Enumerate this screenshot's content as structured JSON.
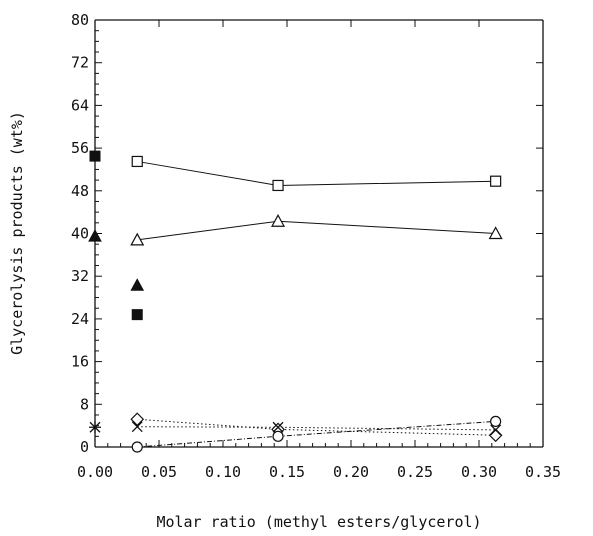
{
  "chart_data": {
    "type": "scatter",
    "title": "",
    "xlabel": "Molar ratio (methyl esters/glycerol)",
    "ylabel": "Glycerolysis products (wt%)",
    "xlim": [
      0,
      0.35
    ],
    "ylim": [
      0,
      80
    ],
    "x_ticks": [
      "0.00",
      "0.05",
      "0.10",
      "0.15",
      "0.20",
      "0.25",
      "0.30",
      "0.35"
    ],
    "y_ticks": [
      "0",
      "8",
      "16",
      "24",
      "32",
      "40",
      "48",
      "56",
      "64",
      "72",
      "80"
    ],
    "grid": false,
    "legend": "none",
    "series": [
      {
        "marker": "square-open",
        "line": "solid",
        "x": [
          0.033,
          0.143,
          0.313
        ],
        "y": [
          53.5,
          49.0,
          49.8
        ]
      },
      {
        "marker": "triangle-open",
        "line": "solid",
        "x": [
          0.033,
          0.143,
          0.313
        ],
        "y": [
          38.8,
          42.3,
          40.0
        ]
      },
      {
        "marker": "diamond-open",
        "line": "dotted",
        "x": [
          0.033,
          0.143,
          0.313
        ],
        "y": [
          5.2,
          3.3,
          2.2
        ]
      },
      {
        "marker": "x",
        "line": "dotted",
        "x": [
          0.033,
          0.143,
          0.313
        ],
        "y": [
          3.8,
          3.7,
          3.2
        ]
      },
      {
        "marker": "circle-open",
        "line": "dashdot",
        "x": [
          0.033,
          0.143,
          0.313
        ],
        "y": [
          0.0,
          2.0,
          4.8
        ]
      },
      {
        "marker": "square-filled",
        "line": "none",
        "x": [
          0.0,
          0.033
        ],
        "y": [
          54.5,
          24.8
        ]
      },
      {
        "marker": "triangle-filled",
        "line": "none",
        "x": [
          0.0,
          0.033
        ],
        "y": [
          39.5,
          30.3
        ]
      },
      {
        "marker": "star",
        "line": "none",
        "x": [
          0.0
        ],
        "y": [
          3.7
        ]
      }
    ]
  }
}
